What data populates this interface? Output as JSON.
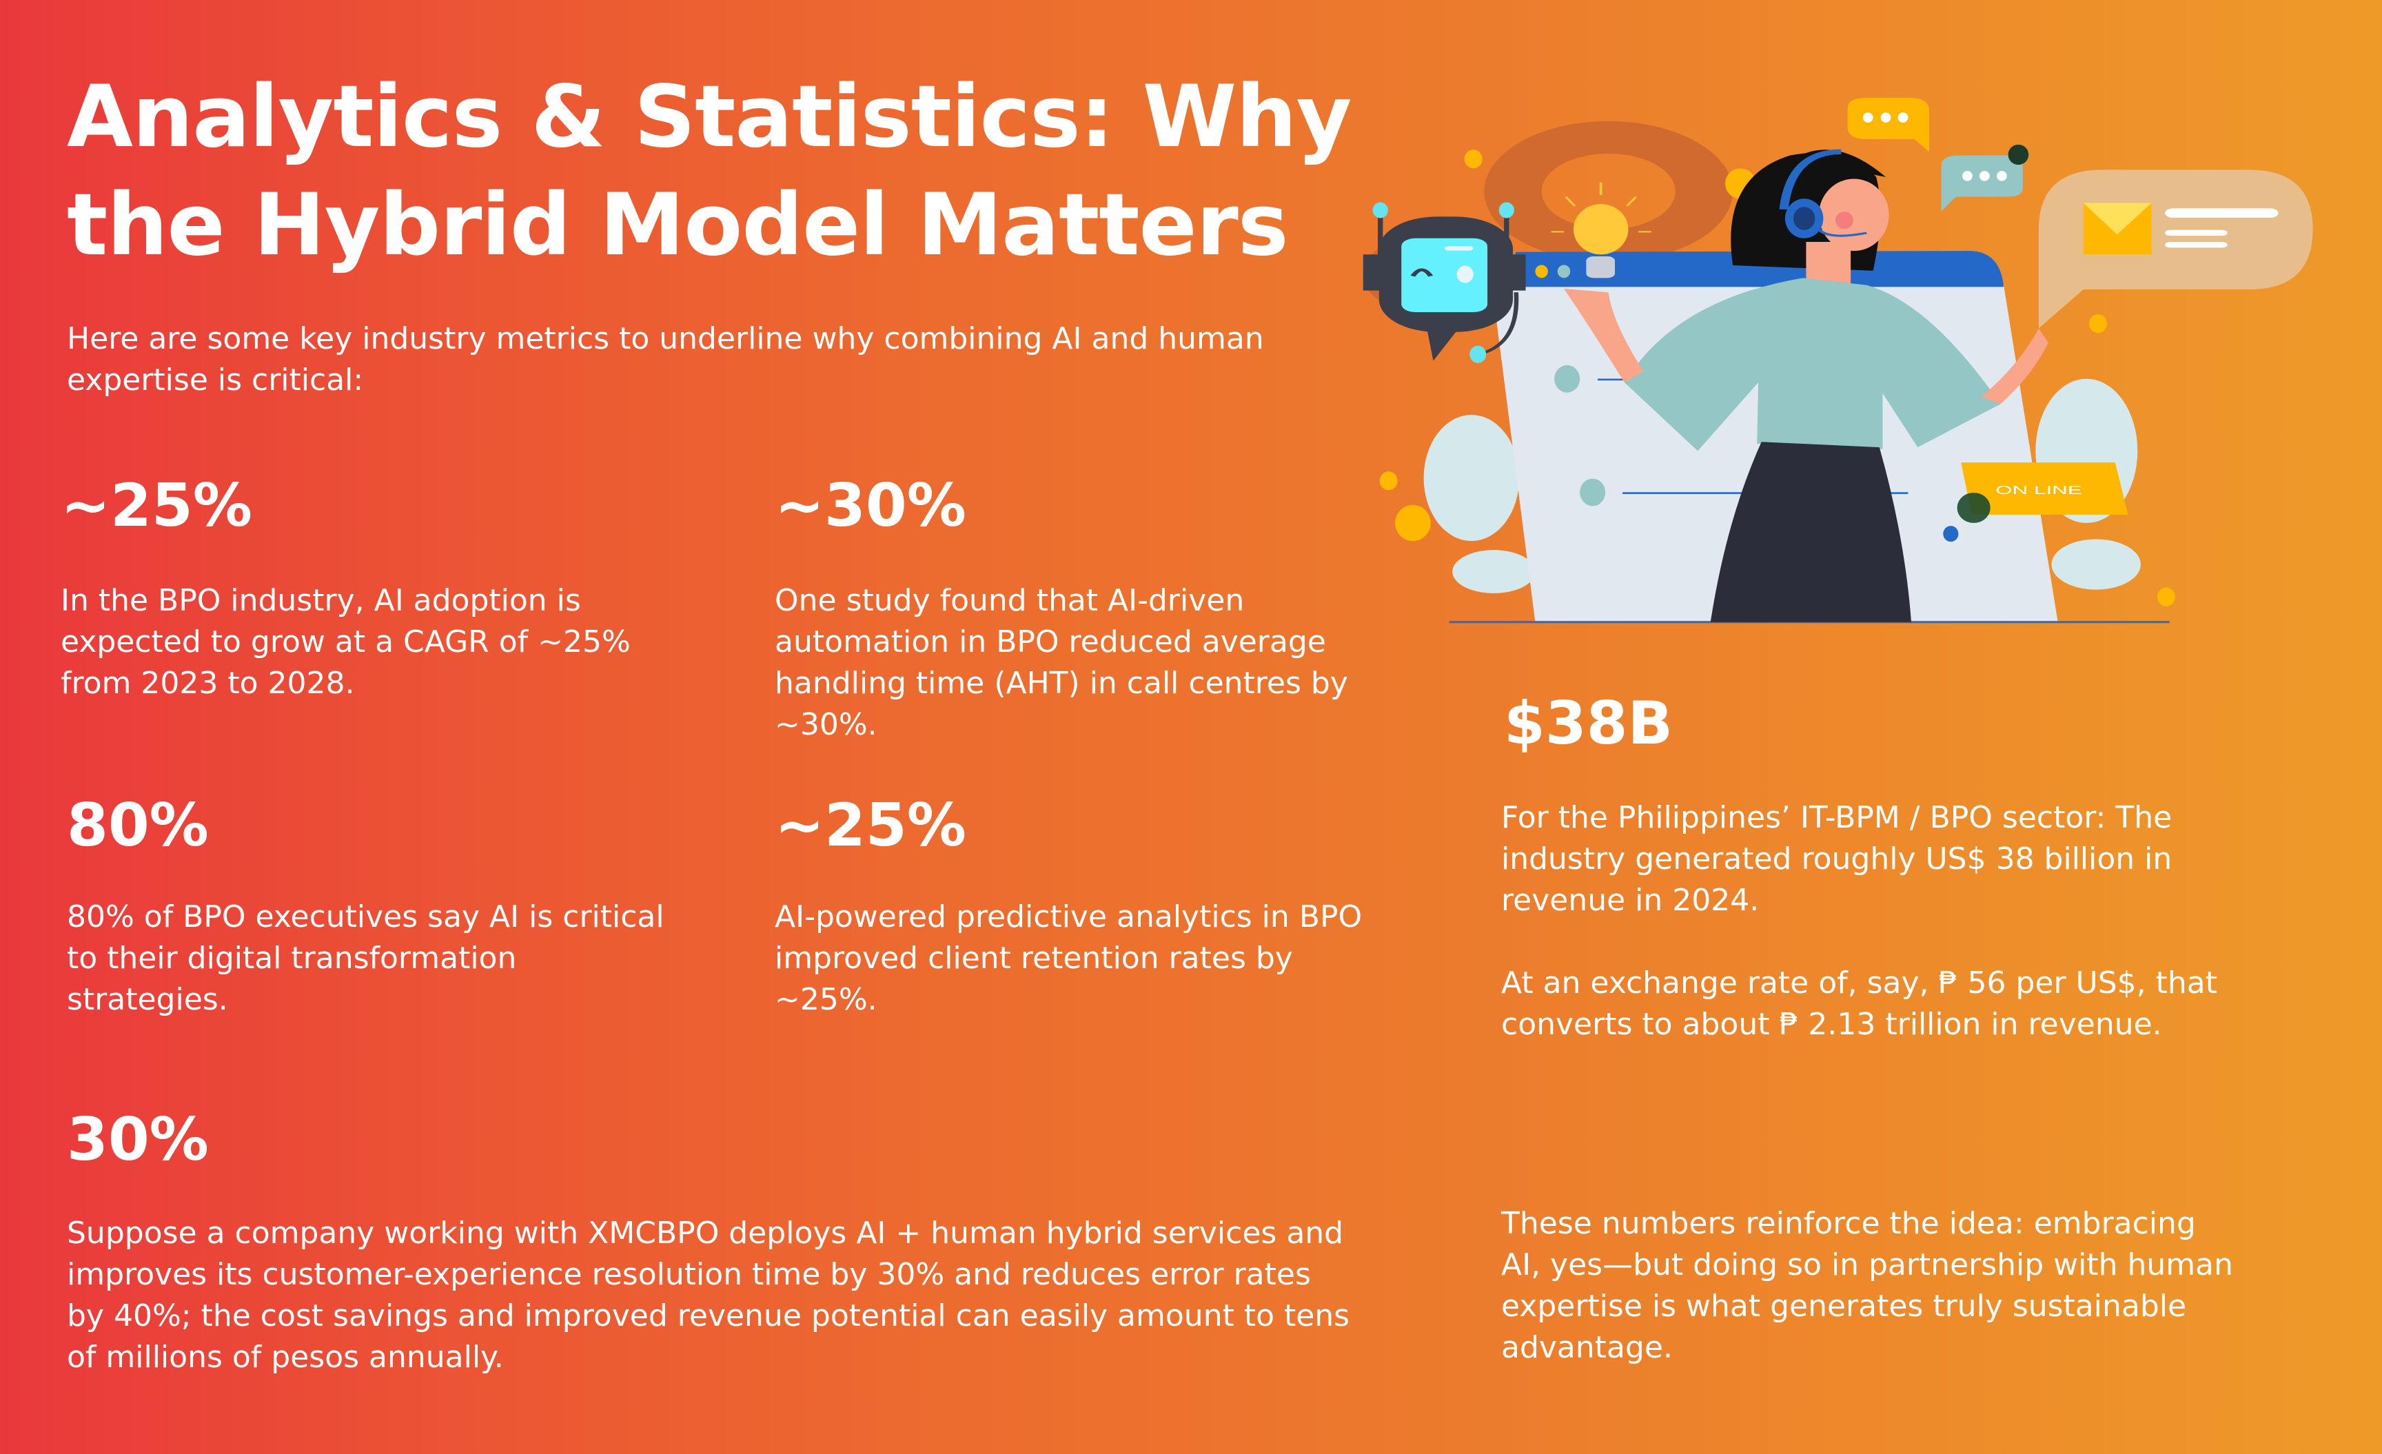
{
  "title": [
    "Analytics & Statistics: Why",
    "the Hybrid Model Matters"
  ],
  "intro": [
    "Here are some key industry metrics to underline why combining AI and human",
    "expertise is critical:"
  ],
  "stats": [
    {
      "value": "~25%",
      "desc": [
        "In the BPO industry, AI adoption is",
        "expected to grow at a CAGR of ~25%",
        "from 2023 to 2028."
      ]
    },
    {
      "value": "~30%",
      "desc": [
        "One study found that AI-driven",
        "automation in BPO reduced average",
        "handling time (AHT) in call centres by",
        "~30%."
      ]
    },
    {
      "value": "80%",
      "desc": [
        "80% of BPO executives say AI is critical",
        "to their digital transformation",
        "strategies."
      ]
    },
    {
      "value": "~25%",
      "desc": [
        "AI-powered predictive analytics in BPO",
        "improved client retention rates by",
        "~25%."
      ]
    },
    {
      "value": "30%",
      "desc": [
        "Suppose a company working with XMCBPO deploys AI + human hybrid services and",
        "improves its customer-experience resolution time by 30% and reduces error rates",
        "by 40%; the cost savings and improved revenue potential can easily amount to tens",
        "of millions of pesos annually."
      ]
    },
    {
      "value": "$38B",
      "desc": [
        "For the Philippines’ IT-BPM / BPO sector: The",
        "industry generated roughly US$ 38 billion in",
        "revenue in 2024."
      ],
      "desc2": [
        "At an exchange rate of, say, ₱ 56 per US$, that",
        "converts to about ₱ 2.13 trillion in revenue."
      ]
    }
  ],
  "conclusion": [
    "These numbers reinforce the idea: embracing",
    "AI, yes—but doing so in partnership with human",
    "expertise is what generates truly sustainable",
    "advantage."
  ],
  "illustration": {
    "online_badge": "ON LINE",
    "icons": [
      "gear-icon",
      "robot-chatbot-icon",
      "lightbulb-icon",
      "speech-bubble-icon",
      "envelope-icon",
      "headset-agent-icon"
    ]
  },
  "colors": {
    "gradient_left": "#E9383C",
    "gradient_mid": "#EC7A2D",
    "gradient_right": "#EE9A29",
    "accent_yellow": "#FFB800",
    "accent_blue": "#2469C8",
    "accent_teal": "#93C6C5"
  }
}
